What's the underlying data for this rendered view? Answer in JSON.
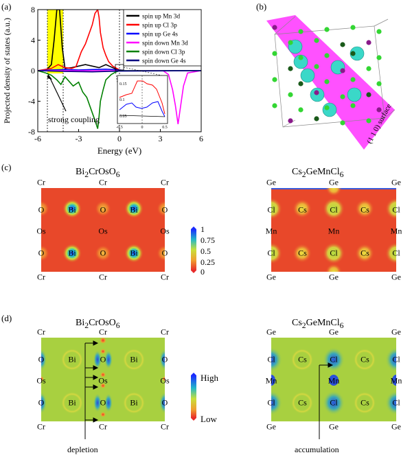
{
  "panels": {
    "a": "(a)",
    "b": "(b)",
    "c": "(c)",
    "d": "(d)"
  },
  "chart_data": {
    "type": "line",
    "xlabel": "Energy (eV)",
    "ylabel": "Projected density of states (a.u.)",
    "xlim": [
      -6,
      6
    ],
    "ylim": [
      -8,
      8
    ],
    "xticks": [
      "-6",
      "-3",
      "0",
      "3",
      "6"
    ],
    "yticks": [
      "8",
      "4",
      "0",
      "-4",
      "-8"
    ],
    "series": [
      {
        "name": "spin up Mn 3d",
        "color": "#000000",
        "x": [
          -6,
          -5.3,
          -5.0,
          -4.8,
          -4.6,
          -4.4,
          -4.2,
          -4.0,
          -3.5,
          -3.0,
          -2.5,
          -2.0,
          -1.5,
          -1.0,
          -0.5,
          0,
          0.5,
          6
        ],
        "y": [
          0,
          0.2,
          0.8,
          4,
          8,
          8,
          3,
          0.3,
          0.4,
          0.6,
          0.8,
          0.6,
          0.4,
          0.8,
          0.4,
          0,
          0,
          0
        ]
      },
      {
        "name": "spin up Cl 3p",
        "color": "#ff0000",
        "x": [
          -6,
          -5,
          -4.5,
          -4,
          -3.5,
          -3.2,
          -3.0,
          -2.8,
          -2.5,
          -2.2,
          -2.0,
          -1.8,
          -1.6,
          -1.5,
          -1.4,
          -1.2,
          -1.0,
          -0.8,
          -0.5,
          -0.2,
          0,
          0.5,
          6
        ],
        "y": [
          0,
          0.3,
          0.8,
          0.4,
          0.3,
          0.5,
          1.5,
          2.5,
          3.5,
          5.0,
          6.0,
          7.5,
          8.0,
          7.0,
          5.0,
          3.0,
          2.0,
          1.2,
          0.6,
          0.3,
          0.1,
          0,
          0
        ]
      },
      {
        "name": "spin up Ge 4s",
        "color": "#0000ff",
        "x": [
          -6,
          -5,
          -4,
          -3,
          -2,
          -1,
          -0.5,
          0,
          0.5,
          6
        ],
        "y": [
          0,
          0.1,
          0.15,
          0.1,
          0.15,
          0.2,
          0.15,
          0.1,
          0,
          0
        ]
      },
      {
        "name": "spin down Mn 3d",
        "color": "#ff00ff",
        "x": [
          -6,
          0,
          3.2,
          3.6,
          3.9,
          4.1,
          4.3,
          4.5,
          4.7,
          5.0,
          6
        ],
        "y": [
          0,
          0,
          0,
          -0.5,
          -2.5,
          -4.5,
          -7,
          -4.5,
          -2,
          -0.3,
          0
        ]
      },
      {
        "name": "spin down Cl 3p",
        "color": "#008000",
        "x": [
          -6,
          -5.4,
          -5.0,
          -4.6,
          -4.3,
          -4.0,
          -3.7,
          -3.4,
          -3.0,
          -2.7,
          -2.4,
          -2.2,
          -2.0,
          -1.8,
          -1.6,
          -1.5,
          -1.4,
          -1.2,
          -1.0,
          -0.6,
          -0.3,
          0,
          6
        ],
        "y": [
          0,
          -0.3,
          -0.6,
          -1.2,
          -1.8,
          -0.8,
          -1.4,
          -2.0,
          -1.5,
          -2.8,
          -3.5,
          -4.5,
          -5.5,
          -6.5,
          -7.6,
          -6.0,
          -4.0,
          -2.5,
          -1.2,
          -0.5,
          -0.2,
          0,
          0
        ]
      },
      {
        "name": "spin down Ge 4s",
        "color": "#000080",
        "x": [
          -6,
          -4,
          -2,
          0,
          6
        ],
        "y": [
          0,
          -0.1,
          -0.15,
          -0.05,
          0
        ]
      }
    ],
    "annotations": [
      "strong coupling"
    ],
    "inset": {
      "xticks": [
        "-0.5",
        "0",
        "0.5"
      ],
      "yticks": [
        "0.15",
        "0.1",
        "0.05"
      ]
    }
  },
  "structure": {
    "surface_label": "(1 1 0) surface"
  },
  "colorbar_c": {
    "ticks": [
      "1",
      "0.75",
      "0.5",
      "0.25",
      "0"
    ]
  },
  "colorbar_d": {
    "high": "High",
    "low": "Low"
  },
  "panel_c": {
    "left": {
      "title_main": "Bi",
      "title_sub1": "2",
      "title_mid": "CrOsO",
      "title_sub2": "6",
      "labels": [
        "Cr",
        "Cr",
        "Cr",
        "O",
        "Bi",
        "O",
        "Bi",
        "O",
        "Os",
        "Os",
        "Os",
        "O",
        "Bi",
        "O",
        "Bi",
        "O",
        "Cr",
        "Cr",
        "Cr"
      ]
    },
    "right": {
      "title_main": "Cs",
      "title_sub1": "2",
      "title_mid": "GeMnCl",
      "title_sub2": "6",
      "labels": [
        "Ge",
        "Ge",
        "Ge",
        "Cl",
        "Cs",
        "Cl",
        "Cs",
        "Cl",
        "Mn",
        "Mn",
        "Mn",
        "Cl",
        "Cs",
        "Cl",
        "Cs",
        "Cl",
        "Ge",
        "Ge",
        "Ge"
      ]
    }
  },
  "panel_d": {
    "left": {
      "title_main": "Bi",
      "title_sub1": "2",
      "title_mid": "CrOsO",
      "title_sub2": "6",
      "labels": [
        "Cr",
        "Cr",
        "Cr",
        "O",
        "Bi",
        "O",
        "Bi",
        "O",
        "Os",
        "Os",
        "Os",
        "O",
        "Bi",
        "O",
        "Bi",
        "O",
        "Cr",
        "Cr",
        "Cr"
      ],
      "annotation": "depletion"
    },
    "right": {
      "title_main": "Cs",
      "title_sub1": "2",
      "title_mid": "GeMnCl",
      "title_sub2": "6",
      "labels": [
        "Ge",
        "Ge",
        "Ge",
        "Cl",
        "Cs",
        "Cl",
        "Cs",
        "Cl",
        "Mn",
        "Mn",
        "Mn",
        "Cl",
        "Cs",
        "Cl",
        "Cs",
        "Cl",
        "Ge",
        "Ge",
        "Ge"
      ],
      "annotation": "accumulation"
    }
  }
}
